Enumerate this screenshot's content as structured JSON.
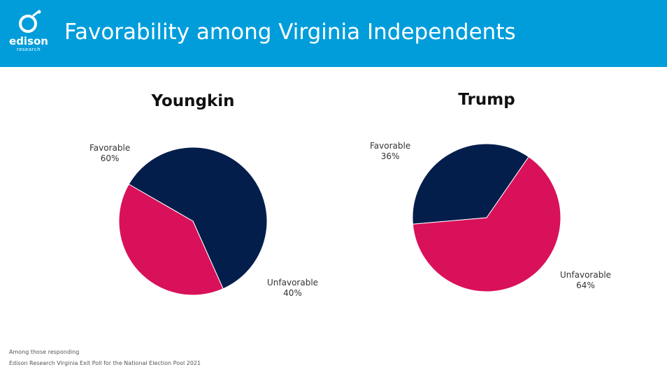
{
  "header": {
    "title": "Favorability among Virginia Independents",
    "logo_text": "edison",
    "logo_sub": "research"
  },
  "colors": {
    "header": "#019DDB",
    "favorable": "#041E4C",
    "unfavorable": "#D9115A"
  },
  "chart_data": [
    {
      "type": "pie",
      "title": "Youngkin",
      "categories": [
        "Favorable",
        "Unfavorable"
      ],
      "values": [
        60,
        40
      ],
      "labels": [
        "60%",
        "40%"
      ]
    },
    {
      "type": "pie",
      "title": "Trump",
      "categories": [
        "Favorable",
        "Unfavorable"
      ],
      "values": [
        36,
        64
      ],
      "labels": [
        "36%",
        "64%"
      ]
    }
  ],
  "footnote": {
    "line1": "Among those responding",
    "line2": "Edison Research Virginia Exit Poll for the National Election Pool 2021"
  }
}
